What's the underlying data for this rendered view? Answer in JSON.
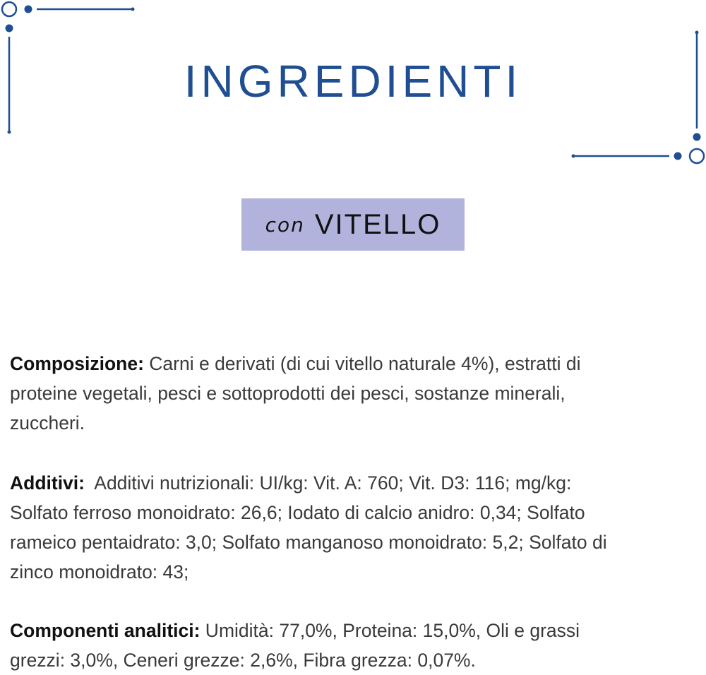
{
  "colors": {
    "accent": "#1f4f92",
    "badge_bg": "#b1b3dc"
  },
  "header": {
    "title": "INGREDIENTI"
  },
  "badge": {
    "prefix": "con",
    "name": "VITELLO"
  },
  "sections": [
    {
      "label": "Composizione:",
      "lines": [
        " Carni e derivati (di cui vitello naturale 4%), estratti di",
        "proteine vegetali, pesci e sottoprodotti dei pesci, sostanze minerali,",
        "zuccheri."
      ]
    },
    {
      "label": "Additivi:",
      "lines": [
        "  Additivi nutrizionali: UI/kg: Vit. A: 760; Vit. D3: 116; mg/kg:",
        "Solfato ferroso monoidrato: 26,6; Iodato di calcio anidro: 0,34; Solfato",
        "rameico pentaidrato: 3,0; Solfato manganoso monoidrato: 5,2; Solfato di",
        "zinco monoidrato: 43;"
      ]
    },
    {
      "label": "Componenti analitici:",
      "lines": [
        " Umidità: 77,0%, Proteina: 15,0%, Oli e grassi",
        "grezzi: 3,0%, Ceneri grezze: 2,6%, Fibra grezza: 0,07%."
      ]
    }
  ]
}
